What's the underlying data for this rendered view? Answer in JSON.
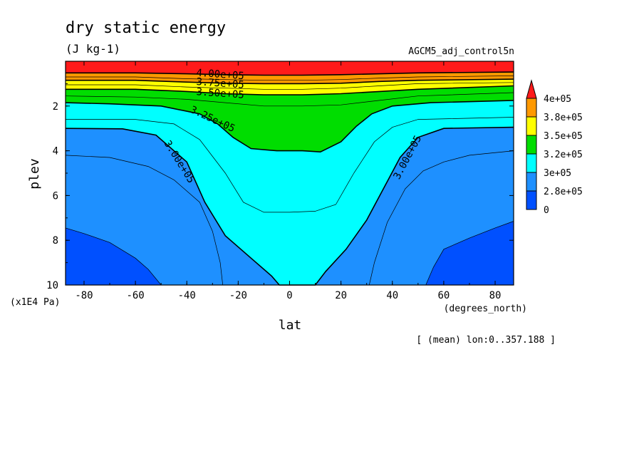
{
  "chart_data": {
    "type": "heatmap",
    "title": "dry static energy",
    "units": "(J kg-1)",
    "experiment": "AGCM5_adj_control5n",
    "xlabel": "lat",
    "x_units": "(degrees_north)",
    "ylabel": "plev",
    "y_units": "(x1E4 Pa)",
    "footnote": "[ (mean) lon:0..357.188 ]",
    "xlim": [
      -87.2,
      87.2
    ],
    "ylim": [
      10,
      0
    ],
    "x_ticks": [
      -80,
      -60,
      -40,
      -20,
      0,
      20,
      40,
      60,
      80
    ],
    "x_tick_labels": [
      "-80",
      "-60",
      "-40",
      "-20",
      "0",
      "20",
      "40",
      "60",
      "80"
    ],
    "y_ticks": [
      2,
      4,
      6,
      8,
      10
    ],
    "y_tick_labels": [
      "2",
      "4",
      "6",
      "8",
      "10"
    ],
    "colorbar": {
      "labels": [
        "4e+05",
        "3.8e+05",
        "3.5e+05",
        "3.2e+05",
        "3e+05",
        "2.8e+05",
        "0"
      ],
      "colors": [
        "#ff1a1a",
        "#ff9900",
        "#ffff00",
        "#00dd00",
        "#00ffff",
        "#1e90ff",
        "#0050ff"
      ],
      "top_color": "#ff1a1a"
    },
    "contour_lines": [
      {
        "value": 275000,
        "label": "",
        "points": [
          [
            -87.2,
            7.45
          ],
          [
            -80,
            7.7
          ],
          [
            -70,
            8.1
          ],
          [
            -60,
            8.8
          ],
          [
            -55,
            9.3
          ],
          [
            -50,
            10
          ],
          [
            53,
            10
          ],
          [
            56,
            9.2
          ],
          [
            60,
            8.4
          ],
          [
            70,
            7.9
          ],
          [
            80,
            7.45
          ],
          [
            87.2,
            7.15
          ]
        ]
      },
      {
        "value": 287500,
        "label": "",
        "points": [
          [
            -87.2,
            4.2
          ],
          [
            -70,
            4.3
          ],
          [
            -55,
            4.7
          ],
          [
            -45,
            5.3
          ],
          [
            -35,
            6.3
          ],
          [
            -30,
            7.6
          ],
          [
            -27,
            9
          ],
          [
            -26,
            10
          ],
          [
            31,
            10
          ],
          [
            33,
            9
          ],
          [
            38,
            7.2
          ],
          [
            45,
            5.7
          ],
          [
            52,
            4.9
          ],
          [
            60,
            4.5
          ],
          [
            70,
            4.2
          ],
          [
            87.2,
            4.0
          ]
        ]
      },
      {
        "value": 300000,
        "label": "3.00e+05",
        "points": [
          [
            -87.2,
            3.0
          ],
          [
            -65,
            3.02
          ],
          [
            -52,
            3.3
          ],
          [
            -40,
            4.5
          ],
          [
            -33,
            6.3
          ],
          [
            -25,
            7.8
          ],
          [
            -15,
            8.8
          ],
          [
            -7,
            9.6
          ],
          [
            -4,
            10
          ],
          [
            10,
            10
          ],
          [
            14,
            9.4
          ],
          [
            22,
            8.4
          ],
          [
            30,
            7.1
          ],
          [
            37,
            5.6
          ],
          [
            43,
            4.3
          ],
          [
            50,
            3.4
          ],
          [
            60,
            3.0
          ],
          [
            87.2,
            2.95
          ]
        ]
      },
      {
        "value": 312500,
        "label": "",
        "points": [
          [
            -87.2,
            2.6
          ],
          [
            -60,
            2.6
          ],
          [
            -45,
            2.8
          ],
          [
            -35,
            3.5
          ],
          [
            -25,
            5.0
          ],
          [
            -18,
            6.3
          ],
          [
            -10,
            6.75
          ],
          [
            0,
            6.75
          ],
          [
            10,
            6.7
          ],
          [
            18,
            6.4
          ],
          [
            25,
            5.0
          ],
          [
            33,
            3.6
          ],
          [
            40,
            2.95
          ],
          [
            50,
            2.6
          ],
          [
            87.2,
            2.5
          ]
        ]
      },
      {
        "value": 325000,
        "label": "3.25e+05",
        "points": [
          [
            -87.2,
            1.85
          ],
          [
            -70,
            1.9
          ],
          [
            -50,
            2.0
          ],
          [
            -35,
            2.35
          ],
          [
            -28,
            2.8
          ],
          [
            -22,
            3.4
          ],
          [
            -15,
            3.9
          ],
          [
            -5,
            4.0
          ],
          [
            5,
            4.0
          ],
          [
            12,
            4.05
          ],
          [
            20,
            3.6
          ],
          [
            26,
            2.9
          ],
          [
            32,
            2.35
          ],
          [
            40,
            2.0
          ],
          [
            55,
            1.85
          ],
          [
            87.2,
            1.75
          ]
        ]
      },
      {
        "value": 337500,
        "label": "",
        "points": [
          [
            -87.2,
            1.55
          ],
          [
            -60,
            1.6
          ],
          [
            -40,
            1.7
          ],
          [
            -25,
            1.85
          ],
          [
            -10,
            2.0
          ],
          [
            5,
            2.0
          ],
          [
            20,
            1.95
          ],
          [
            35,
            1.75
          ],
          [
            50,
            1.55
          ],
          [
            87.2,
            1.4
          ]
        ]
      },
      {
        "value": 350000,
        "label": "3.50e+05",
        "points": [
          [
            -87.2,
            1.25
          ],
          [
            -60,
            1.25
          ],
          [
            -40,
            1.35
          ],
          [
            -25,
            1.45
          ],
          [
            -10,
            1.5
          ],
          [
            5,
            1.5
          ],
          [
            20,
            1.45
          ],
          [
            35,
            1.35
          ],
          [
            50,
            1.25
          ],
          [
            87.2,
            1.1
          ]
        ]
      },
      {
        "value": 362500,
        "label": "",
        "points": [
          [
            -87.2,
            1.05
          ],
          [
            -60,
            1.05
          ],
          [
            -40,
            1.15
          ],
          [
            -25,
            1.2
          ],
          [
            -10,
            1.25
          ],
          [
            5,
            1.25
          ],
          [
            20,
            1.2
          ],
          [
            35,
            1.1
          ],
          [
            50,
            1.0
          ],
          [
            87.2,
            0.95
          ]
        ]
      },
      {
        "value": 375000,
        "label": "3.75e+05",
        "points": [
          [
            -87.2,
            0.85
          ],
          [
            -60,
            0.85
          ],
          [
            -40,
            0.93
          ],
          [
            -25,
            0.98
          ],
          [
            -10,
            1.0
          ],
          [
            5,
            1.0
          ],
          [
            20,
            0.98
          ],
          [
            35,
            0.9
          ],
          [
            50,
            0.85
          ],
          [
            87.2,
            0.8
          ]
        ]
      },
      {
        "value": 387500,
        "label": "",
        "points": [
          [
            -87.2,
            0.7
          ],
          [
            -60,
            0.7
          ],
          [
            -40,
            0.78
          ],
          [
            -25,
            0.82
          ],
          [
            -10,
            0.85
          ],
          [
            5,
            0.85
          ],
          [
            20,
            0.82
          ],
          [
            35,
            0.75
          ],
          [
            50,
            0.7
          ],
          [
            87.2,
            0.65
          ]
        ]
      },
      {
        "value": 400000,
        "label": "4.00e+05",
        "points": [
          [
            -87.2,
            0.52
          ],
          [
            -60,
            0.52
          ],
          [
            -40,
            0.56
          ],
          [
            -25,
            0.6
          ],
          [
            -10,
            0.62
          ],
          [
            5,
            0.62
          ],
          [
            20,
            0.6
          ],
          [
            35,
            0.56
          ],
          [
            50,
            0.52
          ],
          [
            87.2,
            0.48
          ]
        ]
      }
    ]
  }
}
